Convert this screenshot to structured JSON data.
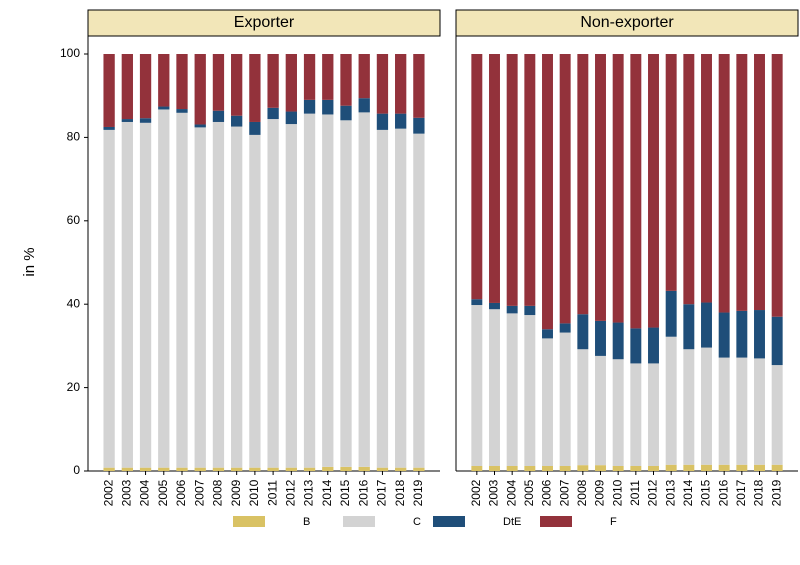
{
  "chart_data": {
    "type": "bar",
    "stacked": true,
    "ylabel": "in %",
    "ylim": [
      0,
      100
    ],
    "yticks": [
      0,
      20,
      40,
      60,
      80,
      100
    ],
    "categories": [
      "2002",
      "2003",
      "2004",
      "2005",
      "2006",
      "2007",
      "2008",
      "2009",
      "2010",
      "2011",
      "2012",
      "2013",
      "2014",
      "2015",
      "2016",
      "2017",
      "2018",
      "2019"
    ],
    "series": [
      {
        "name": "B",
        "color": "#d9c264"
      },
      {
        "name": "C",
        "color": "#d3d3d3"
      },
      {
        "name": "DtE",
        "color": "#1f4e79"
      },
      {
        "name": "F",
        "color": "#93323b"
      }
    ],
    "panels": [
      {
        "title": "Exporter",
        "series_values": [
          [
            0.8,
            0.8,
            0.8,
            0.8,
            0.8,
            0.8,
            0.8,
            0.8,
            0.8,
            0.8,
            0.8,
            0.8,
            1.0,
            1.0,
            1.0,
            0.8,
            0.8,
            0.8
          ],
          [
            81.0,
            82.9,
            82.7,
            85.9,
            85.1,
            81.6,
            82.9,
            81.8,
            79.8,
            83.6,
            82.4,
            84.9,
            84.5,
            83.1,
            85.0,
            81.0,
            81.3,
            80.1
          ],
          [
            0.7,
            0.7,
            1.1,
            0.7,
            0.9,
            0.7,
            2.7,
            2.6,
            3.1,
            2.7,
            3.0,
            3.3,
            3.5,
            3.5,
            3.4,
            3.9,
            3.6,
            3.8
          ],
          [
            17.5,
            15.6,
            15.4,
            12.6,
            13.2,
            16.9,
            13.6,
            14.8,
            16.3,
            12.9,
            13.8,
            11.0,
            11.0,
            12.4,
            10.6,
            14.3,
            14.3,
            15.3
          ]
        ]
      },
      {
        "title": "Non-exporter",
        "series_values": [
          [
            1.2,
            1.2,
            1.2,
            1.2,
            1.2,
            1.2,
            1.4,
            1.4,
            1.2,
            1.2,
            1.2,
            1.5,
            1.5,
            1.5,
            1.5,
            1.5,
            1.5,
            1.5
          ],
          [
            38.6,
            37.6,
            36.6,
            36.2,
            30.6,
            32.0,
            27.8,
            26.2,
            25.6,
            24.6,
            24.6,
            30.7,
            27.7,
            28.1,
            25.7,
            25.7,
            25.5,
            23.9
          ],
          [
            1.4,
            1.5,
            1.8,
            2.2,
            2.2,
            2.2,
            8.4,
            8.4,
            8.8,
            8.4,
            8.6,
            11.0,
            10.8,
            10.8,
            10.8,
            11.2,
            11.6,
            11.6
          ],
          [
            58.8,
            59.7,
            60.4,
            60.4,
            66.0,
            64.6,
            62.4,
            64.0,
            64.4,
            65.8,
            65.6,
            56.8,
            60.0,
            59.6,
            62.0,
            61.6,
            61.4,
            63.0
          ]
        ]
      }
    ]
  }
}
